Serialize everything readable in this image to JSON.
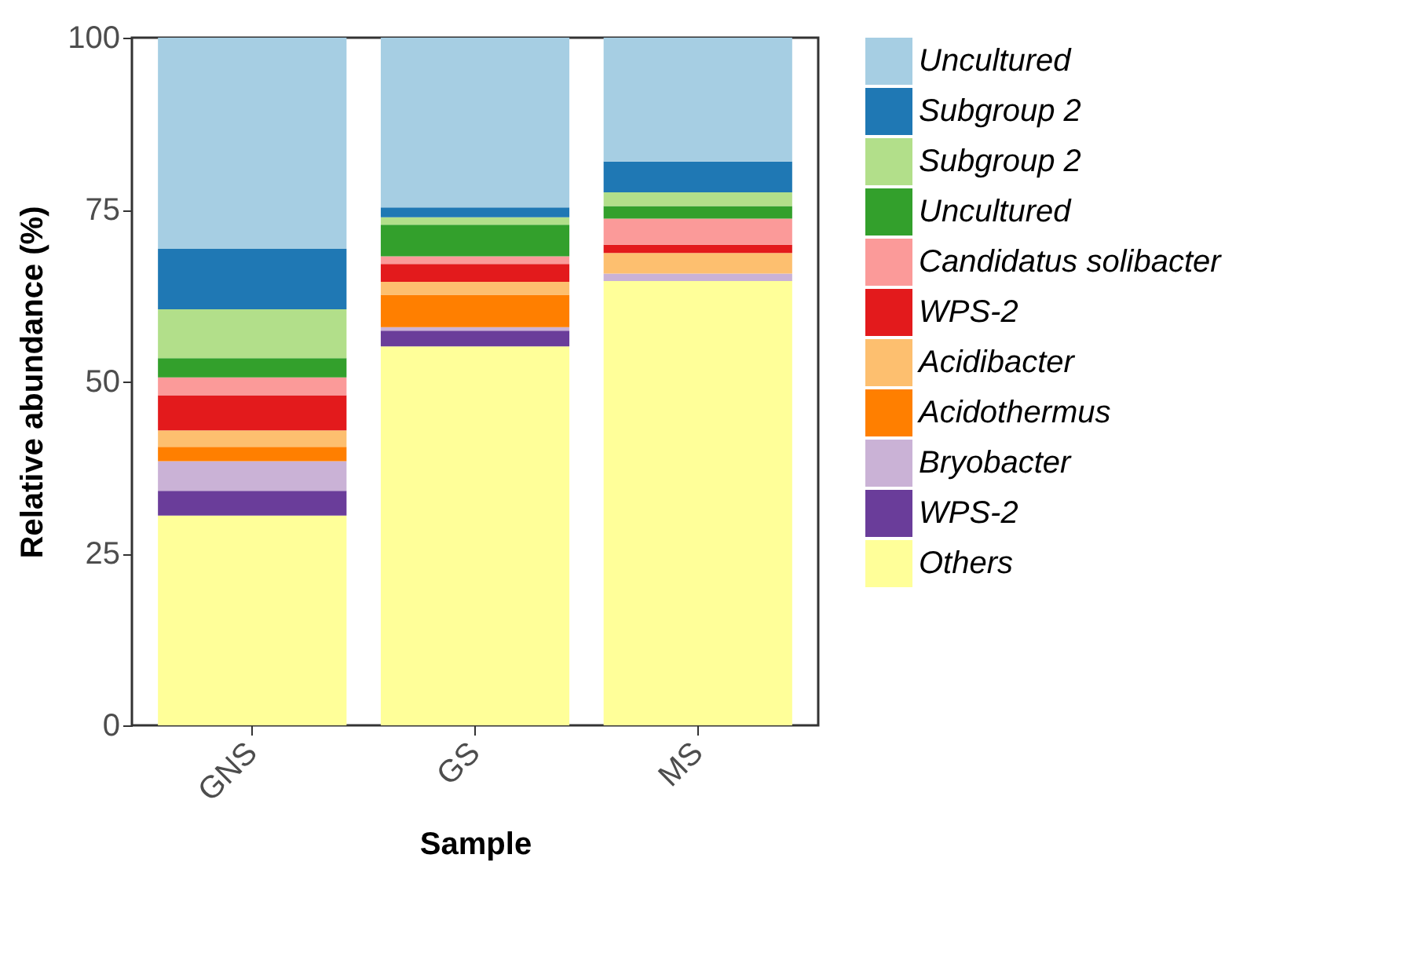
{
  "chart_data": {
    "type": "bar",
    "stacked": true,
    "xlabel": "Sample",
    "ylabel": "Relative abundance (%)",
    "categories": [
      "GNS",
      "GS",
      "MS"
    ],
    "series": [
      {
        "name": "Others",
        "color": "#ffff99",
        "values": [
          30.5,
          55.1,
          64.6
        ]
      },
      {
        "name": "WPS-2",
        "color": "#6a3d9a",
        "values": [
          3.6,
          2.3,
          0
        ]
      },
      {
        "name": "Bryobacter",
        "color": "#cab2d6",
        "values": [
          4.3,
          0.5,
          1.1
        ]
      },
      {
        "name": "Acidothermus",
        "color": "#ff7f00",
        "values": [
          2.1,
          4.7,
          0
        ]
      },
      {
        "name": "Acidibacter",
        "color": "#fdbf6f",
        "values": [
          2.4,
          1.9,
          3.0
        ]
      },
      {
        "name": "WPS-2",
        "color": "#e31a1c",
        "values": [
          5.1,
          2.6,
          1.2
        ]
      },
      {
        "name": "Candidatus solibacter",
        "color": "#fb9a99",
        "values": [
          2.6,
          1.1,
          3.8
        ]
      },
      {
        "name": "Uncultured",
        "color": "#33a02c",
        "values": [
          2.8,
          4.6,
          1.8
        ]
      },
      {
        "name": "Subgroup 2",
        "color": "#b2df8a",
        "values": [
          7.1,
          1.1,
          2.0
        ]
      },
      {
        "name": "Subgroup 2",
        "color": "#1f78b4",
        "values": [
          8.8,
          1.4,
          4.5
        ]
      },
      {
        "name": "Uncultured",
        "color": "#a6cee3",
        "values": [
          30.7,
          24.7,
          18.0
        ]
      }
    ],
    "ylim": [
      0,
      100
    ],
    "yticks": [
      0,
      25,
      50,
      75,
      100
    ],
    "grid": false,
    "legend": "right"
  }
}
